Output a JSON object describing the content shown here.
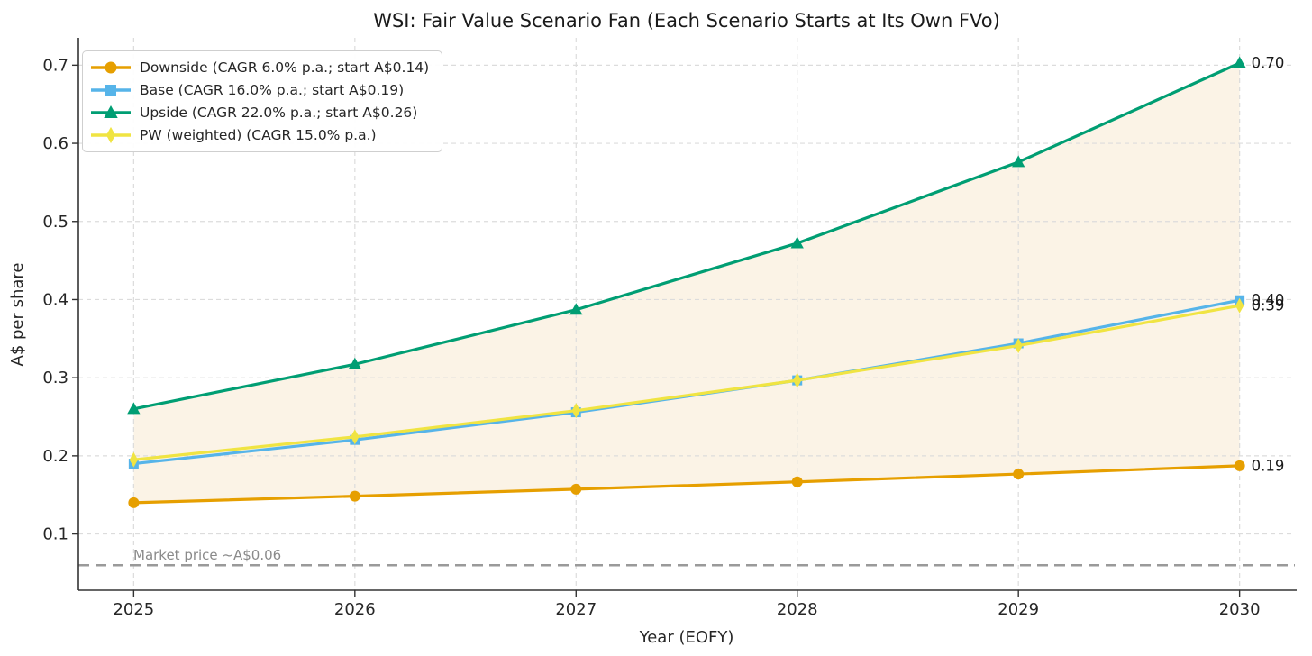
{
  "title": "WSI: Fair Value Scenario Fan (Each Scenario Starts at Its Own FVo)",
  "palette": {
    "grid": "#DCDCDC",
    "spine": "#333333",
    "text": "#262626",
    "muted_text": "#8A8A8A",
    "background": "#FFFFFF"
  },
  "chart_data": {
    "type": "line",
    "x": [
      2025,
      2026,
      2027,
      2028,
      2029,
      2030
    ],
    "xtick_labels": [
      "2025",
      "2026",
      "2027",
      "2028",
      "2029",
      "2030"
    ],
    "yticks": [
      0.1,
      0.2,
      0.3,
      0.4,
      0.5,
      0.6,
      0.7
    ],
    "ytick_labels": [
      "0.1",
      "0.2",
      "0.3",
      "0.4",
      "0.5",
      "0.6",
      "0.7"
    ],
    "xlabel": "Year (EOFY)",
    "ylabel": "A$ per share",
    "xlim": [
      2024.75,
      2030.25
    ],
    "ylim": [
      0.028,
      0.735
    ],
    "grid": true,
    "legend_position": "upper-left",
    "series": [
      {
        "name": "Downside (CAGR 6.0% p.a.; start A$0.14)",
        "color": "#E69F00",
        "marker": "circle",
        "values": [
          0.14,
          0.1484,
          0.1573,
          0.1667,
          0.1767,
          0.1873
        ],
        "end_label": "0.19"
      },
      {
        "name": "Base (CAGR 16.0% p.a.; start A$0.19)",
        "color": "#56B4E9",
        "marker": "square",
        "values": [
          0.19,
          0.2204,
          0.2557,
          0.2966,
          0.344,
          0.3991
        ],
        "end_label": "0.40"
      },
      {
        "name": "Upside (CAGR 22.0% p.a.; start A$0.26)",
        "color": "#009E73",
        "marker": "triangle",
        "values": [
          0.26,
          0.3172,
          0.387,
          0.4721,
          0.576,
          0.7027
        ],
        "end_label": "0.70"
      },
      {
        "name": "PW (weighted) (CAGR 15.0% p.a.)",
        "color": "#F0E442",
        "marker": "diamond",
        "values": [
          0.195,
          0.2243,
          0.2579,
          0.2966,
          0.3411,
          0.3922
        ],
        "end_label": "0.39"
      }
    ],
    "fan_fill": {
      "lower_series": 0,
      "upper_series": 2,
      "color": "#FBF3E6"
    },
    "reference_line": {
      "value": 0.06,
      "label": "Market price ~A$0.06",
      "color": "#9A9A9A",
      "style": "dashed"
    }
  }
}
